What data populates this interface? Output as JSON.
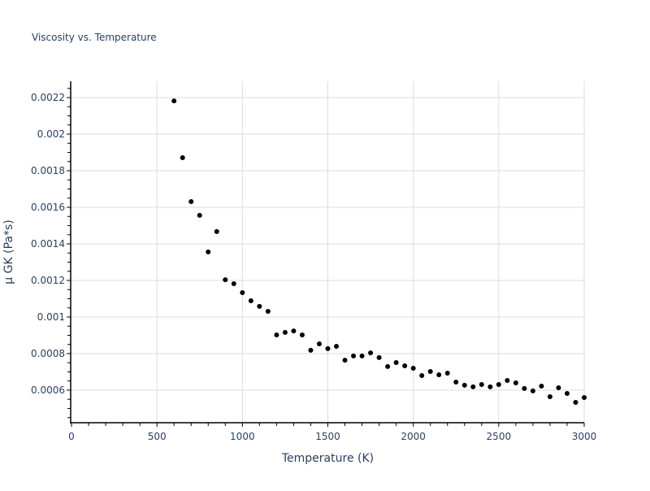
{
  "chart_data": {
    "type": "scatter",
    "title": "Viscosity vs. Temperature",
    "xlabel": "Temperature (K)",
    "ylabel": "μ GK (Pa*s)",
    "xlim": [
      0,
      3000
    ],
    "ylim": [
      0.000422,
      0.002289
    ],
    "grid": true,
    "legend": "none",
    "marker_color": "#000000",
    "x_ticks": [
      0,
      500,
      1000,
      1500,
      2000,
      2500,
      3000
    ],
    "x_tick_labels": [
      "0",
      "500",
      "1000",
      "1500",
      "2000",
      "2500",
      "3000"
    ],
    "y_ticks": [
      0.0006,
      0.0008,
      0.001,
      0.0012,
      0.0014,
      0.0016,
      0.0018,
      0.002,
      0.0022
    ],
    "y_tick_labels": [
      "0.0006",
      "0.0008",
      "0.001",
      "0.0012",
      "0.0014",
      "0.0016",
      "0.0018",
      "0.002",
      "0.0022"
    ],
    "x": [
      600,
      650,
      700,
      750,
      800,
      850,
      900,
      950,
      1000,
      1050,
      1100,
      1150,
      1200,
      1250,
      1300,
      1350,
      1400,
      1450,
      1500,
      1550,
      1600,
      1650,
      1700,
      1750,
      1800,
      1850,
      1900,
      1950,
      2000,
      2050,
      2100,
      2150,
      2200,
      2250,
      2300,
      2350,
      2400,
      2450,
      2500,
      2550,
      2600,
      2650,
      2700,
      2750,
      2800,
      2850,
      2900,
      2950,
      3000
    ],
    "y": [
      0.002182,
      0.001871,
      0.001631,
      0.001556,
      0.001356,
      0.001467,
      0.001204,
      0.001182,
      0.001133,
      0.001089,
      0.001058,
      0.001031,
      0.000902,
      0.000916,
      0.000924,
      0.000902,
      0.000818,
      0.000853,
      0.000827,
      0.00084,
      0.000764,
      0.000787,
      0.000787,
      0.000804,
      0.000778,
      0.000729,
      0.000751,
      0.000733,
      0.00072,
      0.00068,
      0.000702,
      0.000684,
      0.000693,
      0.000644,
      0.000627,
      0.000618,
      0.000631,
      0.000618,
      0.000631,
      0.000653,
      0.00064,
      0.000609,
      0.000596,
      0.000622,
      0.000564,
      0.000613,
      0.000582,
      0.000533,
      0.00056
    ]
  }
}
